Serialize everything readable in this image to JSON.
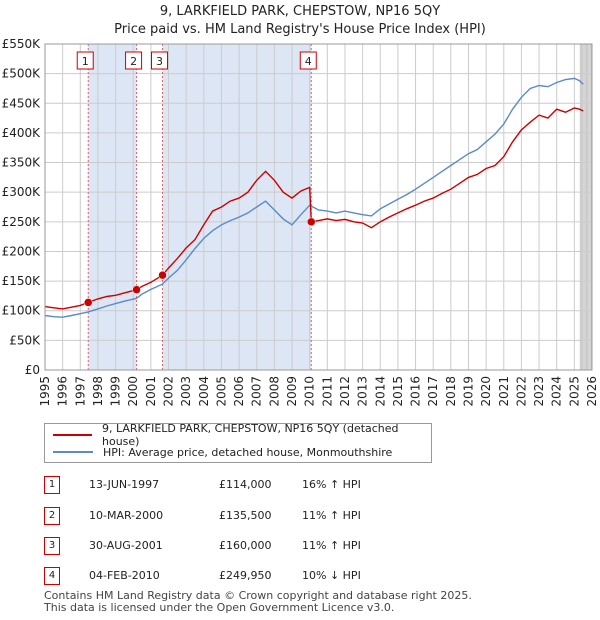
{
  "header": {
    "title": "9, LARKFIELD PARK, CHEPSTOW, NP16 5QY",
    "subtitle": "Price paid vs. HM Land Registry's House Price Index (HPI)"
  },
  "chart_data": {
    "type": "line",
    "title": "9, LARKFIELD PARK, CHEPSTOW, NP16 5QY",
    "subtitle": "Price paid vs. HM Land Registry's House Price Index (HPI)",
    "xlim": [
      1995,
      2026
    ],
    "ylim": [
      0,
      550000
    ],
    "y_ticks": [
      0,
      50000,
      100000,
      150000,
      200000,
      250000,
      300000,
      350000,
      400000,
      450000,
      500000,
      550000
    ],
    "y_tick_labels": [
      "£0",
      "£50K",
      "£100K",
      "£150K",
      "£200K",
      "£250K",
      "£300K",
      "£350K",
      "£400K",
      "£450K",
      "£500K",
      "£550K"
    ],
    "x_ticks": [
      1995,
      1996,
      1997,
      1998,
      1999,
      2000,
      2001,
      2002,
      2003,
      2004,
      2005,
      2006,
      2007,
      2008,
      2009,
      2010,
      2011,
      2012,
      2013,
      2014,
      2015,
      2016,
      2017,
      2018,
      2019,
      2020,
      2021,
      2022,
      2023,
      2024,
      2025,
      2026
    ],
    "shaded_regions": [
      [
        1997.45,
        2000.19
      ],
      [
        2001.66,
        2010.09
      ]
    ],
    "projection_start": 2025.3,
    "series": [
      {
        "name": "9, LARKFIELD PARK, CHEPSTOW, NP16 5QY (detached house)",
        "color": "#cc0000",
        "points": [
          [
            1995,
            107000
          ],
          [
            1995.5,
            105000
          ],
          [
            1996,
            103000
          ],
          [
            1996.5,
            106000
          ],
          [
            1997,
            109000
          ],
          [
            1997.45,
            114000
          ],
          [
            1998,
            120000
          ],
          [
            1998.5,
            124000
          ],
          [
            1999,
            126000
          ],
          [
            1999.5,
            130000
          ],
          [
            2000.19,
            135500
          ],
          [
            2000.5,
            141000
          ],
          [
            2001,
            148000
          ],
          [
            2001.66,
            160000
          ],
          [
            2002,
            172000
          ],
          [
            2002.5,
            188000
          ],
          [
            2003,
            206000
          ],
          [
            2003.5,
            220000
          ],
          [
            2004,
            245000
          ],
          [
            2004.5,
            268000
          ],
          [
            2005,
            275000
          ],
          [
            2005.5,
            285000
          ],
          [
            2006,
            290000
          ],
          [
            2006.5,
            300000
          ],
          [
            2007,
            320000
          ],
          [
            2007.5,
            335000
          ],
          [
            2008,
            320000
          ],
          [
            2008.5,
            300000
          ],
          [
            2009,
            290000
          ],
          [
            2009.5,
            302000
          ],
          [
            2010,
            308000
          ],
          [
            2010.09,
            249950
          ],
          [
            2010.5,
            252000
          ],
          [
            2011,
            255000
          ],
          [
            2011.5,
            252000
          ],
          [
            2012,
            254000
          ],
          [
            2012.5,
            250000
          ],
          [
            2013,
            248000
          ],
          [
            2013.5,
            240000
          ],
          [
            2014,
            250000
          ],
          [
            2014.5,
            258000
          ],
          [
            2015,
            265000
          ],
          [
            2015.5,
            272000
          ],
          [
            2016,
            278000
          ],
          [
            2016.5,
            285000
          ],
          [
            2017,
            290000
          ],
          [
            2017.5,
            298000
          ],
          [
            2018,
            305000
          ],
          [
            2018.5,
            315000
          ],
          [
            2019,
            325000
          ],
          [
            2019.5,
            330000
          ],
          [
            2020,
            340000
          ],
          [
            2020.5,
            345000
          ],
          [
            2021,
            360000
          ],
          [
            2021.5,
            385000
          ],
          [
            2022,
            405000
          ],
          [
            2022.5,
            418000
          ],
          [
            2023,
            430000
          ],
          [
            2023.5,
            425000
          ],
          [
            2024,
            440000
          ],
          [
            2024.5,
            435000
          ],
          [
            2025,
            442000
          ],
          [
            2025.3,
            440000
          ],
          [
            2025.5,
            437000
          ]
        ]
      },
      {
        "name": "HPI: Average price, detached house, Monmouthshire",
        "color": "#5b8ac6",
        "points": [
          [
            1995,
            92000
          ],
          [
            1995.5,
            90000
          ],
          [
            1996,
            89000
          ],
          [
            1996.5,
            92000
          ],
          [
            1997,
            95000
          ],
          [
            1997.45,
            98000
          ],
          [
            1998,
            103000
          ],
          [
            1998.5,
            108000
          ],
          [
            1999,
            112000
          ],
          [
            1999.5,
            116000
          ],
          [
            2000.19,
            121000
          ],
          [
            2000.5,
            128000
          ],
          [
            2001,
            136000
          ],
          [
            2001.66,
            145000
          ],
          [
            2002,
            155000
          ],
          [
            2002.5,
            168000
          ],
          [
            2003,
            186000
          ],
          [
            2003.5,
            205000
          ],
          [
            2004,
            222000
          ],
          [
            2004.5,
            235000
          ],
          [
            2005,
            245000
          ],
          [
            2005.5,
            252000
          ],
          [
            2006,
            258000
          ],
          [
            2006.5,
            265000
          ],
          [
            2007,
            275000
          ],
          [
            2007.5,
            285000
          ],
          [
            2008,
            270000
          ],
          [
            2008.5,
            255000
          ],
          [
            2009,
            245000
          ],
          [
            2009.5,
            262000
          ],
          [
            2010,
            278000
          ],
          [
            2010.5,
            270000
          ],
          [
            2011,
            268000
          ],
          [
            2011.5,
            265000
          ],
          [
            2012,
            268000
          ],
          [
            2012.5,
            265000
          ],
          [
            2013,
            262000
          ],
          [
            2013.5,
            260000
          ],
          [
            2014,
            272000
          ],
          [
            2014.5,
            280000
          ],
          [
            2015,
            288000
          ],
          [
            2015.5,
            296000
          ],
          [
            2016,
            305000
          ],
          [
            2016.5,
            315000
          ],
          [
            2017,
            325000
          ],
          [
            2017.5,
            335000
          ],
          [
            2018,
            345000
          ],
          [
            2018.5,
            355000
          ],
          [
            2019,
            365000
          ],
          [
            2019.5,
            372000
          ],
          [
            2020,
            385000
          ],
          [
            2020.5,
            398000
          ],
          [
            2021,
            415000
          ],
          [
            2021.5,
            440000
          ],
          [
            2022,
            460000
          ],
          [
            2022.5,
            475000
          ],
          [
            2023,
            480000
          ],
          [
            2023.5,
            478000
          ],
          [
            2024,
            485000
          ],
          [
            2024.5,
            490000
          ],
          [
            2025,
            492000
          ],
          [
            2025.3,
            488000
          ],
          [
            2025.5,
            482000
          ]
        ]
      }
    ],
    "sale_markers": [
      {
        "num": "1",
        "x": 1997.45,
        "price": 114000
      },
      {
        "num": "2",
        "x": 2000.19,
        "price": 135500
      },
      {
        "num": "3",
        "x": 2001.66,
        "price": 160000
      },
      {
        "num": "4",
        "x": 2010.09,
        "price": 249950
      }
    ]
  },
  "legend": {
    "items": [
      {
        "label": "9, LARKFIELD PARK, CHEPSTOW, NP16 5QY (detached house)",
        "color": "#cc0000"
      },
      {
        "label": "HPI: Average price, detached house, Monmouthshire",
        "color": "#5b8ac6"
      }
    ]
  },
  "transactions": [
    {
      "num": "1",
      "date": "13-JUN-1997",
      "price": "£114,000",
      "hpi": "16% ↑ HPI"
    },
    {
      "num": "2",
      "date": "10-MAR-2000",
      "price": "£135,500",
      "hpi": "11% ↑ HPI"
    },
    {
      "num": "3",
      "date": "30-AUG-2001",
      "price": "£160,000",
      "hpi": "11% ↑ HPI"
    },
    {
      "num": "4",
      "date": "04-FEB-2010",
      "price": "£249,950",
      "hpi": "10% ↓ HPI"
    }
  ],
  "footer": {
    "line1": "Contains HM Land Registry data © Crown copyright and database right 2025.",
    "line2": "This data is licensed under the Open Government Licence v3.0."
  }
}
